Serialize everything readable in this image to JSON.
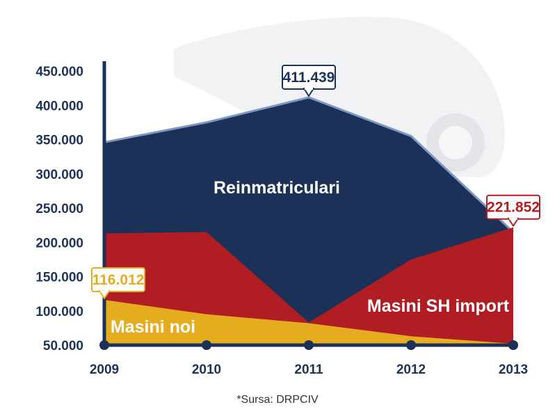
{
  "chart_data": {
    "type": "area",
    "categories": [
      "2009",
      "2010",
      "2011",
      "2012",
      "2013"
    ],
    "ylim": [
      50000,
      450000
    ],
    "yticks": [
      {
        "value": 50000,
        "label": "50.000"
      },
      {
        "value": 100000,
        "label": "100.000"
      },
      {
        "value": 150000,
        "label": "150.000"
      },
      {
        "value": 200000,
        "label": "200.000"
      },
      {
        "value": 250000,
        "label": "250.000"
      },
      {
        "value": 300000,
        "label": "300.000"
      },
      {
        "value": 350000,
        "label": "350.000"
      },
      {
        "value": 400000,
        "label": "400.000"
      },
      {
        "value": 450000,
        "label": "450.000"
      }
    ],
    "series": [
      {
        "name": "Reinmatriculari",
        "color": "#1b3158",
        "values": [
          346000,
          375000,
          411439,
          355000,
          215000
        ]
      },
      {
        "name": "Masini SH import",
        "color": "#b01e23",
        "values": [
          213000,
          215000,
          83000,
          175000,
          221852
        ]
      },
      {
        "name": "Masini noi",
        "color": "#e6ac1f",
        "values": [
          116012,
          95000,
          82000,
          63000,
          52000
        ]
      }
    ],
    "callouts": [
      {
        "category": "2009",
        "series": "Masini noi",
        "label": "116.012",
        "color": "#e6ac1f"
      },
      {
        "category": "2011",
        "series": "Reinmatriculari",
        "label": "411.439",
        "color": "#1b3158"
      },
      {
        "category": "2013",
        "series": "Masini SH import",
        "label": "221.852",
        "color": "#b01e23"
      }
    ],
    "axis_color": "#1b3158",
    "grid": false,
    "legend": "none",
    "source": "*Sursa: DRPCIV"
  }
}
